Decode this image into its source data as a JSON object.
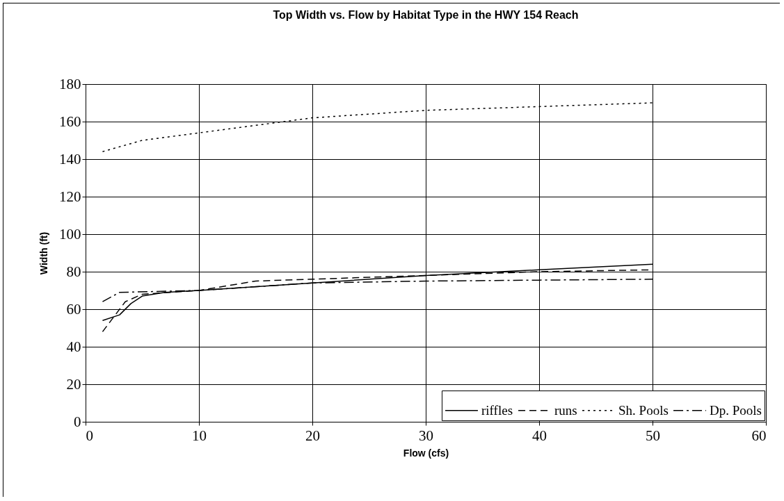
{
  "chart_data": {
    "type": "line",
    "title": "Top Width vs. Flow by Habitat Type in the HWY 154 Reach",
    "xlabel": "Flow (cfs)",
    "ylabel": "Width (ft)",
    "xlim": [
      0,
      60
    ],
    "xticks": [
      0,
      10,
      20,
      30,
      40,
      50,
      60
    ],
    "ylim": [
      0,
      180
    ],
    "yticks": [
      0,
      20,
      40,
      60,
      80,
      100,
      120,
      140,
      160,
      180
    ],
    "grid": true,
    "legend": "bottom right",
    "marker": "none",
    "series": [
      {
        "name": "riffles",
        "color": "#000000",
        "line_style": "solid",
        "x": [
          1.5,
          3,
          4,
          5,
          7,
          10,
          20,
          30,
          40,
          50
        ],
        "values": [
          54,
          57,
          63,
          67,
          69,
          70,
          74,
          78,
          81,
          84
        ]
      },
      {
        "name": "runs",
        "color": "#000000",
        "line_style": "dashed",
        "x": [
          1.5,
          2.5,
          3.5,
          5,
          10,
          15,
          20,
          30,
          40,
          50
        ],
        "values": [
          48,
          56,
          64,
          68,
          70,
          75,
          76,
          78,
          80,
          81
        ]
      },
      {
        "name": "Sh. Pools",
        "color": "#000000",
        "line_style": "dotted",
        "x": [
          1.5,
          5,
          10,
          15,
          20,
          25,
          30,
          35,
          40,
          45,
          50
        ],
        "values": [
          144,
          150,
          154,
          158,
          162,
          164,
          166,
          167,
          168,
          169,
          170
        ]
      },
      {
        "name": "Dp. Pools",
        "color": "#000000",
        "line_style": "dashdot",
        "x": [
          1.5,
          3,
          10,
          20,
          30,
          40,
          50
        ],
        "values": [
          64,
          69,
          70,
          74,
          75,
          75.5,
          76
        ]
      }
    ]
  }
}
